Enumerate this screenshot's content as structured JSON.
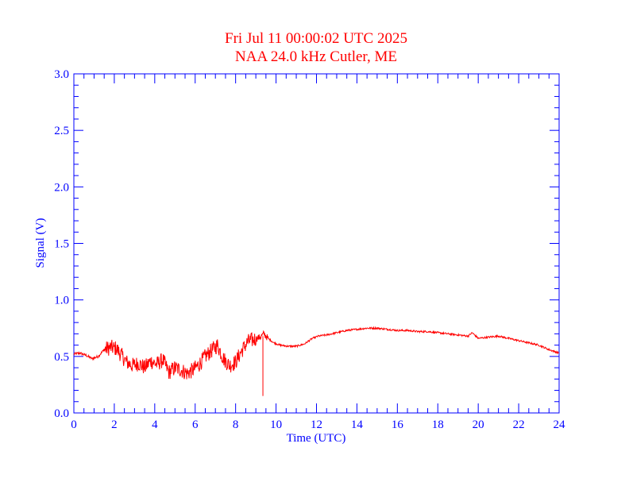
{
  "chart_data": {
    "type": "line",
    "title": "Fri Jul 11 00:00:02 UTC 2025",
    "subtitle": "NAA 24.0 kHz Cutler, ME",
    "xlabel": "Time (UTC)",
    "ylabel": "Signal (V)",
    "xlim": [
      0,
      24
    ],
    "ylim": [
      0,
      3.0
    ],
    "xticks": [
      "0",
      "2",
      "4",
      "6",
      "8",
      "10",
      "12",
      "14",
      "16",
      "18",
      "20",
      "22",
      "24"
    ],
    "yticks": [
      "0.0",
      "0.5",
      "1.0",
      "1.5",
      "2.0",
      "2.5",
      "3.0"
    ],
    "grid": false,
    "colors": {
      "axis": "#0000ff",
      "series": "#ff0000",
      "title": "#ff0000"
    },
    "series": [
      {
        "x": [
          0,
          0.3,
          0.6,
          0.9,
          1.2,
          1.5,
          1.8,
          2.1,
          2.4,
          2.6,
          2.9,
          3.2,
          3.5,
          3.8,
          4.1,
          4.4,
          4.7,
          5.0,
          5.3,
          5.6,
          5.9,
          6.2,
          6.5,
          6.8,
          7.1,
          7.4,
          7.7,
          8.0,
          8.3,
          8.6,
          8.9,
          9.2,
          9.4,
          9.6,
          9.9,
          10.2,
          10.6,
          11.0,
          11.4,
          11.8,
          12.1,
          12.5,
          13.0,
          13.5,
          14.0,
          14.5,
          15.0,
          15.5,
          16.0,
          16.5,
          17.0,
          17.5,
          18.0,
          18.5,
          19.0,
          19.5,
          19.7,
          20.0,
          20.5,
          21.0,
          21.5,
          22.0,
          22.5,
          23.0,
          23.5,
          24.0
        ],
        "y": [
          0.52,
          0.53,
          0.51,
          0.48,
          0.5,
          0.56,
          0.58,
          0.57,
          0.5,
          0.45,
          0.42,
          0.44,
          0.4,
          0.46,
          0.43,
          0.47,
          0.36,
          0.4,
          0.38,
          0.35,
          0.38,
          0.43,
          0.5,
          0.55,
          0.6,
          0.48,
          0.42,
          0.45,
          0.55,
          0.63,
          0.65,
          0.67,
          0.7,
          0.66,
          0.62,
          0.6,
          0.59,
          0.59,
          0.61,
          0.66,
          0.68,
          0.69,
          0.71,
          0.73,
          0.74,
          0.75,
          0.75,
          0.74,
          0.73,
          0.73,
          0.72,
          0.72,
          0.71,
          0.7,
          0.69,
          0.68,
          0.71,
          0.66,
          0.67,
          0.68,
          0.66,
          0.64,
          0.62,
          0.6,
          0.56,
          0.53
        ]
      }
    ]
  }
}
